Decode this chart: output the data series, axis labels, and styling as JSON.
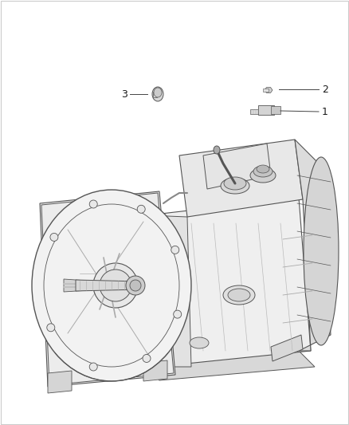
{
  "background_color": "#ffffff",
  "fig_width": 4.38,
  "fig_height": 5.33,
  "dpi": 100,
  "label_1": "1",
  "label_2": "2",
  "label_3": "3",
  "label_color": "#1a1a1a",
  "line_color": "#444444",
  "ec": "#555555",
  "fc_light": "#f0f0f0",
  "fc_mid": "#e0e0e0",
  "fc_dark": "#c8c8c8",
  "fc_vdark": "#b0b0b0",
  "label_fontsize": 9,
  "callout_lw": 0.7
}
